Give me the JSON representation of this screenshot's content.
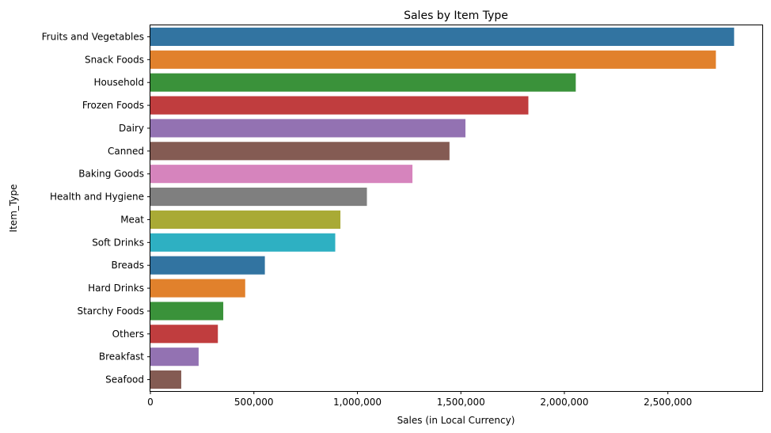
{
  "chart_data": {
    "type": "bar",
    "orientation": "horizontal",
    "title": "Sales by Item Type",
    "xlabel": "Sales (in Local Currency)",
    "ylabel": "Item_Type",
    "xlim": [
      0,
      2960000
    ],
    "xticks": [
      0,
      500000,
      1000000,
      1500000,
      2000000,
      2500000
    ],
    "xtick_labels": [
      "0",
      "500,000",
      "1,000,000",
      "1,500,000",
      "2,000,000",
      "2,500,000"
    ],
    "grid": false,
    "categories": [
      "Fruits and Vegetables",
      "Snack Foods",
      "Household",
      "Frozen Foods",
      "Dairy",
      "Canned",
      "Baking Goods",
      "Health and Hygiene",
      "Meat",
      "Soft Drinks",
      "Breads",
      "Hard Drinks",
      "Starchy Foods",
      "Others",
      "Breakfast",
      "Seafood"
    ],
    "values": [
      2820000,
      2732000,
      2055000,
      1826000,
      1522000,
      1445000,
      1266000,
      1046000,
      918000,
      893000,
      553000,
      458000,
      352000,
      326000,
      233000,
      149000
    ],
    "colors": [
      "#3274a1",
      "#e1812c",
      "#3a923a",
      "#c03d3e",
      "#9372b2",
      "#845b53",
      "#d684bd",
      "#7f7f7f",
      "#a9aa35",
      "#2eb0c2",
      "#3274a1",
      "#e1812c",
      "#3a923a",
      "#c03d3e",
      "#9372b2",
      "#845b53"
    ]
  }
}
